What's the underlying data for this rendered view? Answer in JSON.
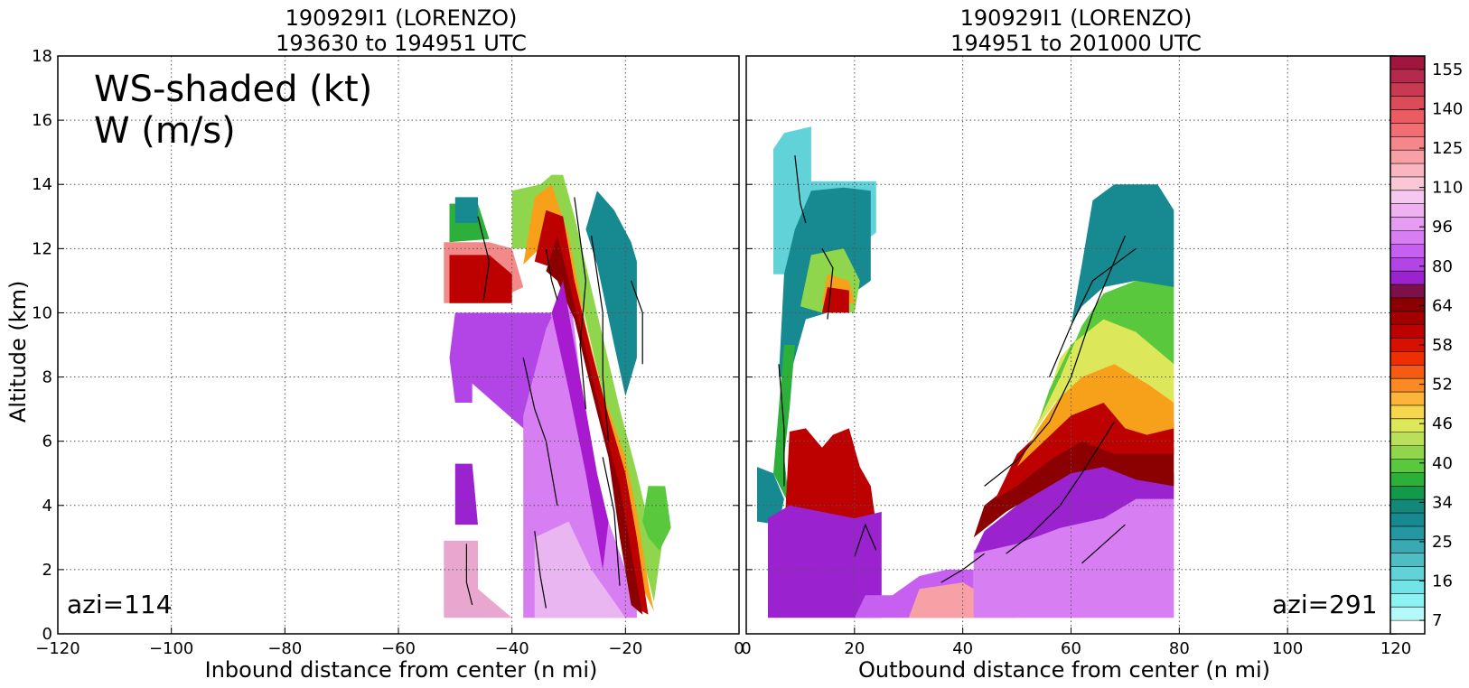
{
  "left_panel": {
    "title_line1": "190929I1 (LORENZO)",
    "title_line2": "193630 to 194951 UTC",
    "legend_line1": "WS-shaded (kt)",
    "legend_line2": "W (m/s)",
    "azimuth": "azi=114",
    "xlabel": "Inbound distance from center (n mi)"
  },
  "right_panel": {
    "title_line1": "190929I1 (LORENZO)",
    "title_line2": "194951 to 201000 UTC",
    "azimuth": "azi=291",
    "xlabel": "Outbound distance from center (n mi)"
  },
  "ylabel": "Altitude (km)",
  "colorbar": {
    "tick_labels": [
      "155",
      "140",
      "125",
      "110",
      "96",
      "80",
      "64",
      "58",
      "52",
      "46",
      "40",
      "34",
      "25",
      "16",
      "7"
    ],
    "colors": [
      "#a1163e",
      "#b52a4c",
      "#c83a52",
      "#db4c58",
      "#ea5c62",
      "#f26e72",
      "#f5878a",
      "#f7a1a6",
      "#f9b6c0",
      "#fac7d7",
      "#f6c8ef",
      "#efb2f1",
      "#e59cf2",
      "#d77ff2",
      "#c760f1",
      "#b344e6",
      "#9a22cf",
      "#7b1148",
      "#8b0000",
      "#a30000",
      "#bd0000",
      "#d81000",
      "#ee2f00",
      "#f75a12",
      "#fb8a24",
      "#fcb43a",
      "#f6d64c",
      "#dce85a",
      "#b8e05a",
      "#8fd64c",
      "#5ac83c",
      "#2cb039",
      "#119a49",
      "#13877a",
      "#168a90",
      "#2497a1",
      "#3aa9b2",
      "#4ebec4",
      "#61d2d8",
      "#72e3e6",
      "#8cf2f2",
      "#b4f9f9",
      "#ffffff"
    ]
  },
  "chart_data": [
    {
      "type": "heatmap",
      "title": "190929I1 (LORENZO) 193630 to 194951 UTC",
      "xlabel": "Inbound distance from center (n mi)",
      "ylabel": "Altitude (km)",
      "xlim": [
        -120,
        0
      ],
      "ylim": [
        0,
        18
      ],
      "x_ticks": [
        -120,
        -100,
        -80,
        -60,
        -40,
        -20,
        0
      ],
      "y_ticks": [
        0,
        2,
        4,
        6,
        8,
        10,
        12,
        14,
        16,
        18
      ],
      "grid": true,
      "shaded_field": "WS (kt)",
      "contour_field": "W (m/s)",
      "data_extent_x": [
        -52,
        -13
      ],
      "data_extent_y": [
        0.5,
        14.3
      ],
      "annotation": "azi=114"
    },
    {
      "type": "heatmap",
      "title": "190929I1 (LORENZO) 194951 to 201000 UTC",
      "xlabel": "Outbound distance from center (n mi)",
      "xlim": [
        0,
        120
      ],
      "ylim": [
        0,
        18
      ],
      "x_ticks": [
        0,
        20,
        40,
        60,
        80,
        100,
        120
      ],
      "y_ticks": [
        0,
        2,
        4,
        6,
        8,
        10,
        12,
        14,
        16,
        18
      ],
      "grid": true,
      "shaded_field": "WS (kt)",
      "contour_field": "W (m/s)",
      "data_extent_x": [
        2,
        79
      ],
      "data_extent_y": [
        0.5,
        15.8
      ],
      "annotation": "azi=291"
    }
  ]
}
